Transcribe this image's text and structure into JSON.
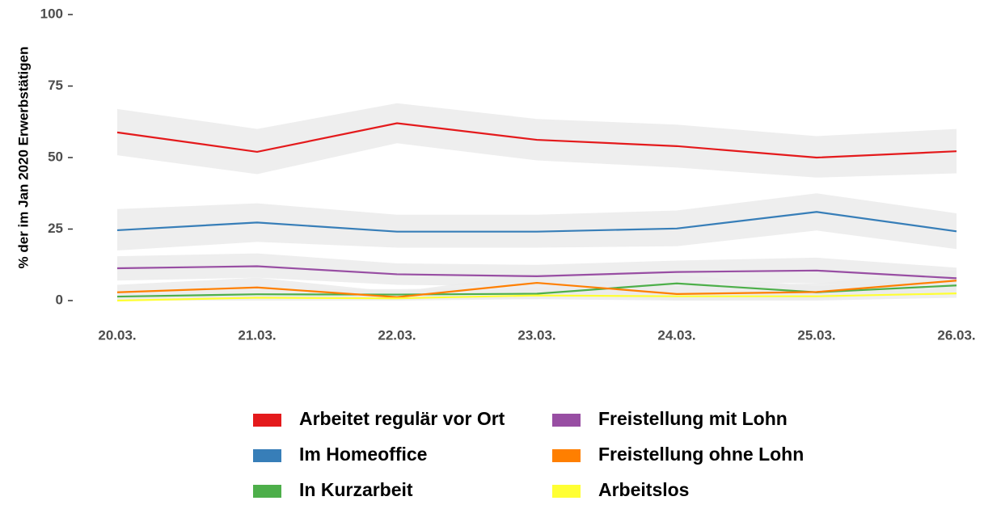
{
  "chart_data": {
    "type": "line",
    "y_label": "% der im Jan 2020 Erwerbstätigen",
    "categories": [
      "20.03.",
      "21.03.",
      "22.03.",
      "23.03.",
      "24.03.",
      "25.03.",
      "26.03."
    ],
    "ylim": [
      0,
      100
    ],
    "yticks": [
      0,
      25,
      50,
      75,
      100
    ],
    "grid": false,
    "band_color": "#ebebeb",
    "series": [
      {
        "name": "Arbeitet regulär vor Ort",
        "color": "#e41a1c",
        "values": [
          58.8,
          52,
          62,
          56.2,
          54,
          50,
          52.2
        ],
        "lower": [
          50.8,
          44.2,
          55,
          49,
          46.5,
          43,
          44.5
        ],
        "upper": [
          67,
          60,
          69,
          63.5,
          61.5,
          57.5,
          60
        ]
      },
      {
        "name": "Im Homeoffice",
        "color": "#377eb8",
        "values": [
          24.6,
          27.3,
          24.1,
          24.1,
          25.2,
          31,
          24.2
        ],
        "lower": [
          17.5,
          20.5,
          18.5,
          18.5,
          19,
          24.5,
          18
        ],
        "upper": [
          32,
          34,
          30,
          30,
          31.5,
          37.5,
          30.5
        ]
      },
      {
        "name": "In Kurzarbeit",
        "color": "#4daf4a",
        "values": [
          1.4,
          2.2,
          2.1,
          2.4,
          6,
          2.9,
          5.3
        ],
        "lower": [
          0,
          0.5,
          0.5,
          0.5,
          3,
          1,
          2.5
        ],
        "upper": [
          3,
          4,
          4,
          4.5,
          9,
          5,
          8
        ]
      },
      {
        "name": "Freistellung mit Lohn",
        "color": "#984ea3",
        "values": [
          11.3,
          12,
          9.2,
          8.5,
          10,
          10.5,
          7.8
        ],
        "lower": [
          7,
          8,
          5.5,
          5,
          6.5,
          6,
          4
        ],
        "upper": [
          15.5,
          16.5,
          13,
          12.5,
          14,
          15,
          11.5
        ]
      },
      {
        "name": "Freistellung ohne Lohn",
        "color": "#ff7f00",
        "values": [
          2.9,
          4.6,
          1.2,
          6.2,
          2.3,
          3,
          7
        ],
        "lower": [
          0.5,
          1.5,
          0,
          3,
          0,
          0.5,
          3.5
        ],
        "upper": [
          5.5,
          8,
          3,
          9.5,
          5,
          6,
          10.5
        ]
      },
      {
        "name": "Arbeitslos",
        "color": "#ffff33",
        "values": [
          0,
          1,
          0.8,
          1.8,
          1.5,
          1.5,
          2.5
        ],
        "lower": [
          0,
          0,
          0,
          0.5,
          0,
          0,
          1
        ],
        "upper": [
          1,
          2,
          2,
          3,
          3,
          3,
          4
        ]
      }
    ]
  }
}
